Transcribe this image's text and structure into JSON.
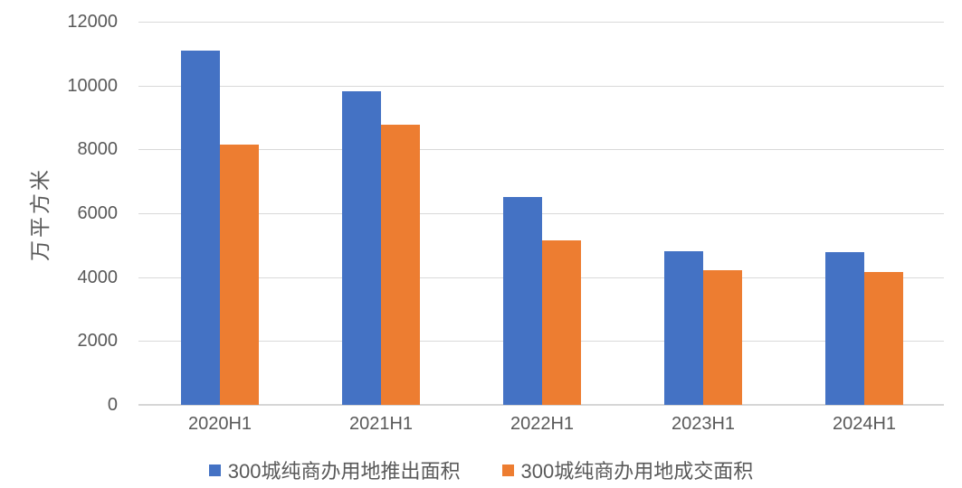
{
  "chart_data": {
    "type": "bar",
    "title": "",
    "xlabel": "",
    "ylabel": "万平方米",
    "categories": [
      "2020H1",
      "2021H1",
      "2022H1",
      "2023H1",
      "2024H1"
    ],
    "series": [
      {
        "name": "300城纯商办用地推出面积",
        "color": "#4472C4",
        "values": [
          11100,
          9820,
          6510,
          4810,
          4780
        ]
      },
      {
        "name": "300城纯商办用地成交面积",
        "color": "#ED7D31",
        "values": [
          8150,
          8770,
          5150,
          4220,
          4160
        ]
      }
    ],
    "ylim": [
      0,
      12000
    ],
    "yticks": [
      0,
      2000,
      4000,
      6000,
      8000,
      10000,
      12000
    ],
    "grid": true,
    "legend_position": "bottom"
  },
  "colors": {
    "series1": "#4472C4",
    "series2": "#ED7D31",
    "gridline": "#d9d9d9",
    "axis_line": "#d6d6d6",
    "text": "#595959",
    "background": "#ffffff"
  }
}
